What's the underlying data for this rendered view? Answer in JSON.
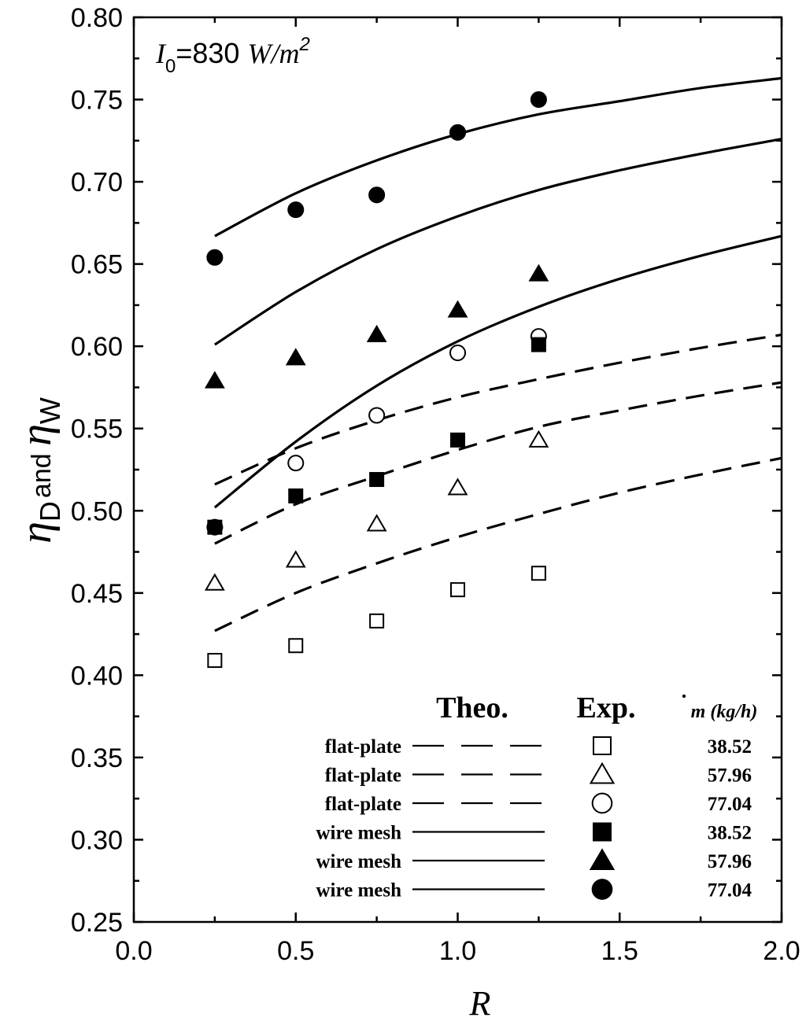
{
  "chart_data": {
    "type": "scatter",
    "annotation": {
      "symbol": "I",
      "subscript": "0",
      "text": "=830 ",
      "unit": "W/m",
      "superscript": "2"
    },
    "xlabel": "R",
    "ylabel": {
      "eta1": "η",
      "sub1": "D",
      "mid": "and ",
      "eta2": "η",
      "sub2": "W"
    },
    "xlim": [
      0.0,
      2.0
    ],
    "ylim": [
      0.25,
      0.8
    ],
    "x_ticks": [
      "0.0",
      "0.5",
      "1.0",
      "1.5",
      "2.0"
    ],
    "y_ticks": [
      "0.25",
      "0.30",
      "0.35",
      "0.40",
      "0.45",
      "0.50",
      "0.55",
      "0.60",
      "0.65",
      "0.70",
      "0.75",
      "0.80"
    ],
    "grid": false,
    "legend_position": "bottom-right",
    "legend_headers": {
      "theo": "Theo.",
      "exp": "Exp.",
      "mdot": "m",
      "mdot_unit": " (kg/h)"
    },
    "theoretical_curves": [
      {
        "name": "flat-plate",
        "mdot": "38.52",
        "style": "dashed",
        "x": [
          0.25,
          0.5,
          0.75,
          1.0,
          1.25,
          1.5,
          1.75,
          2.0
        ],
        "y": [
          0.427,
          0.45,
          0.468,
          0.484,
          0.498,
          0.511,
          0.522,
          0.532
        ]
      },
      {
        "name": "flat-plate",
        "mdot": "57.96",
        "style": "dashed",
        "x": [
          0.25,
          0.5,
          0.75,
          1.0,
          1.25,
          1.5,
          1.75,
          2.0
        ],
        "y": [
          0.48,
          0.504,
          0.521,
          0.537,
          0.551,
          0.561,
          0.57,
          0.578
        ]
      },
      {
        "name": "flat-plate",
        "mdot": "77.04",
        "style": "dashed",
        "x": [
          0.25,
          0.5,
          0.75,
          1.0,
          1.25,
          1.5,
          1.75,
          2.0
        ],
        "y": [
          0.516,
          0.538,
          0.555,
          0.569,
          0.58,
          0.59,
          0.599,
          0.607
        ]
      },
      {
        "name": "wire mesh",
        "mdot": "38.52",
        "style": "solid",
        "x": [
          0.25,
          0.5,
          0.75,
          1.0,
          1.25,
          1.5,
          1.75,
          2.0
        ],
        "y": [
          0.502,
          0.542,
          0.576,
          0.603,
          0.624,
          0.641,
          0.655,
          0.667
        ]
      },
      {
        "name": "wire mesh",
        "mdot": "57.96",
        "style": "solid",
        "x": [
          0.25,
          0.5,
          0.75,
          1.0,
          1.25,
          1.5,
          1.75,
          2.0
        ],
        "y": [
          0.601,
          0.633,
          0.659,
          0.679,
          0.695,
          0.707,
          0.717,
          0.726
        ]
      },
      {
        "name": "wire mesh",
        "mdot": "77.04",
        "style": "solid",
        "x": [
          0.25,
          0.5,
          0.75,
          1.0,
          1.25,
          1.5,
          1.75,
          2.0
        ],
        "y": [
          0.667,
          0.693,
          0.713,
          0.729,
          0.741,
          0.749,
          0.757,
          0.763
        ]
      }
    ],
    "experimental_series": [
      {
        "name": "flat-plate",
        "mdot": "38.52",
        "marker": "square",
        "fill": "open",
        "x": [
          0.25,
          0.5,
          0.75,
          1.0,
          1.25
        ],
        "y": [
          0.409,
          0.418,
          0.433,
          0.452,
          0.462
        ]
      },
      {
        "name": "flat-plate",
        "mdot": "57.96",
        "marker": "triangle",
        "fill": "open",
        "x": [
          0.25,
          0.5,
          0.75,
          1.0,
          1.25
        ],
        "y": [
          0.456,
          0.47,
          0.492,
          0.514,
          0.543
        ]
      },
      {
        "name": "flat-plate",
        "mdot": "77.04",
        "marker": "circle",
        "fill": "open",
        "x": [
          0.25,
          0.5,
          0.75,
          1.0,
          1.25
        ],
        "y": [
          0.49,
          0.529,
          0.558,
          0.596,
          0.606
        ]
      },
      {
        "name": "wire mesh",
        "mdot": "38.52",
        "marker": "square",
        "fill": "solid",
        "x": [
          0.25,
          0.5,
          0.75,
          1.0,
          1.25
        ],
        "y": [
          0.49,
          0.509,
          0.519,
          0.543,
          0.601
        ]
      },
      {
        "name": "wire mesh",
        "mdot": "57.96",
        "marker": "triangle",
        "fill": "solid",
        "x": [
          0.25,
          0.5,
          0.75,
          1.0,
          1.25
        ],
        "y": [
          0.579,
          0.593,
          0.607,
          0.622,
          0.644
        ]
      },
      {
        "name": "wire mesh",
        "mdot": "77.04",
        "marker": "circle",
        "fill": "solid",
        "x": [
          0.25,
          0.5,
          0.75,
          1.0,
          1.25
        ],
        "y": [
          0.654,
          0.683,
          0.692,
          0.73,
          0.75
        ]
      }
    ],
    "legend_rows": [
      {
        "label": "flat-plate",
        "line": "dashed",
        "marker": "square",
        "fill": "open",
        "mdot": "38.52"
      },
      {
        "label": "flat-plate",
        "line": "dashed",
        "marker": "triangle",
        "fill": "open",
        "mdot": "57.96"
      },
      {
        "label": "flat-plate",
        "line": "dashed",
        "marker": "circle",
        "fill": "open",
        "mdot": "77.04"
      },
      {
        "label": "wire mesh",
        "line": "solid",
        "marker": "square",
        "fill": "solid",
        "mdot": "38.52"
      },
      {
        "label": "wire mesh",
        "line": "solid",
        "marker": "triangle",
        "fill": "solid",
        "mdot": "57.96"
      },
      {
        "label": "wire mesh",
        "line": "solid",
        "marker": "circle",
        "fill": "solid",
        "mdot": "77.04"
      }
    ],
    "colors": {
      "line": "#000000",
      "background": "#ffffff"
    }
  }
}
